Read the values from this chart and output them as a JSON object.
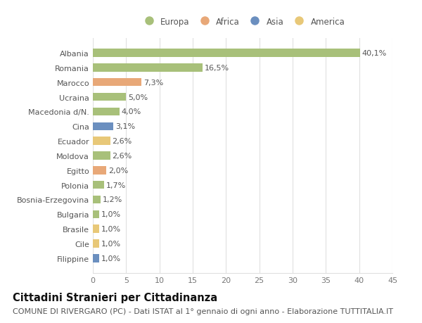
{
  "categories": [
    "Filippine",
    "Cile",
    "Brasile",
    "Bulgaria",
    "Bosnia-Erzegovina",
    "Polonia",
    "Egitto",
    "Moldova",
    "Ecuador",
    "Cina",
    "Macedonia d/N.",
    "Ucraina",
    "Marocco",
    "Romania",
    "Albania"
  ],
  "values": [
    1.0,
    1.0,
    1.0,
    1.0,
    1.2,
    1.7,
    2.0,
    2.6,
    2.6,
    3.1,
    4.0,
    5.0,
    7.3,
    16.5,
    40.1
  ],
  "labels": [
    "1,0%",
    "1,0%",
    "1,0%",
    "1,0%",
    "1,2%",
    "1,7%",
    "2,0%",
    "2,6%",
    "2,6%",
    "3,1%",
    "4,0%",
    "5,0%",
    "7,3%",
    "16,5%",
    "40,1%"
  ],
  "continents": [
    "Asia",
    "America",
    "America",
    "Europa",
    "Europa",
    "Europa",
    "Africa",
    "Europa",
    "America",
    "Asia",
    "Europa",
    "Europa",
    "Africa",
    "Europa",
    "Europa"
  ],
  "continent_colors": {
    "Europa": "#a8c07a",
    "Africa": "#e8a878",
    "Asia": "#6b8fbf",
    "America": "#e8c878"
  },
  "legend_order": [
    "Europa",
    "Africa",
    "Asia",
    "America"
  ],
  "title": "Cittadini Stranieri per Cittadinanza",
  "subtitle": "COMUNE DI RIVERGARO (PC) - Dati ISTAT al 1° gennaio di ogni anno - Elaborazione TUTTITALIA.IT",
  "xlim": [
    0,
    45
  ],
  "xticks": [
    0,
    5,
    10,
    15,
    20,
    25,
    30,
    35,
    40,
    45
  ],
  "bg_color": "#ffffff",
  "grid_color": "#e0e0e0",
  "bar_height": 0.55,
  "title_fontsize": 10.5,
  "subtitle_fontsize": 8.0,
  "label_fontsize": 8.0,
  "tick_fontsize": 8.0,
  "legend_fontsize": 8.5
}
